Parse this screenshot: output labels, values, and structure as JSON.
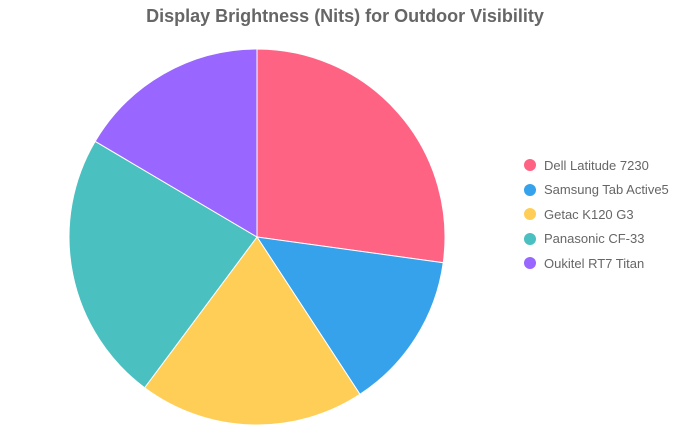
{
  "chart_data": {
    "type": "pie",
    "title": "Display Brightness (Nits) for Outdoor Visibility",
    "legend_position": "right",
    "slices": [
      {
        "label": "Dell Latitude 7230",
        "value": 1400,
        "color": "#ff6384"
      },
      {
        "label": "Samsung Tab Active5",
        "value": 700,
        "color": "#36a2eb"
      },
      {
        "label": "Getac K120 G3",
        "value": 1000,
        "color": "#ffce56"
      },
      {
        "label": "Panasonic CF-33",
        "value": 1200,
        "color": "#4bc0c0"
      },
      {
        "label": "Oukitel RT7 Titan",
        "value": 850,
        "color": "#9966ff"
      }
    ]
  }
}
